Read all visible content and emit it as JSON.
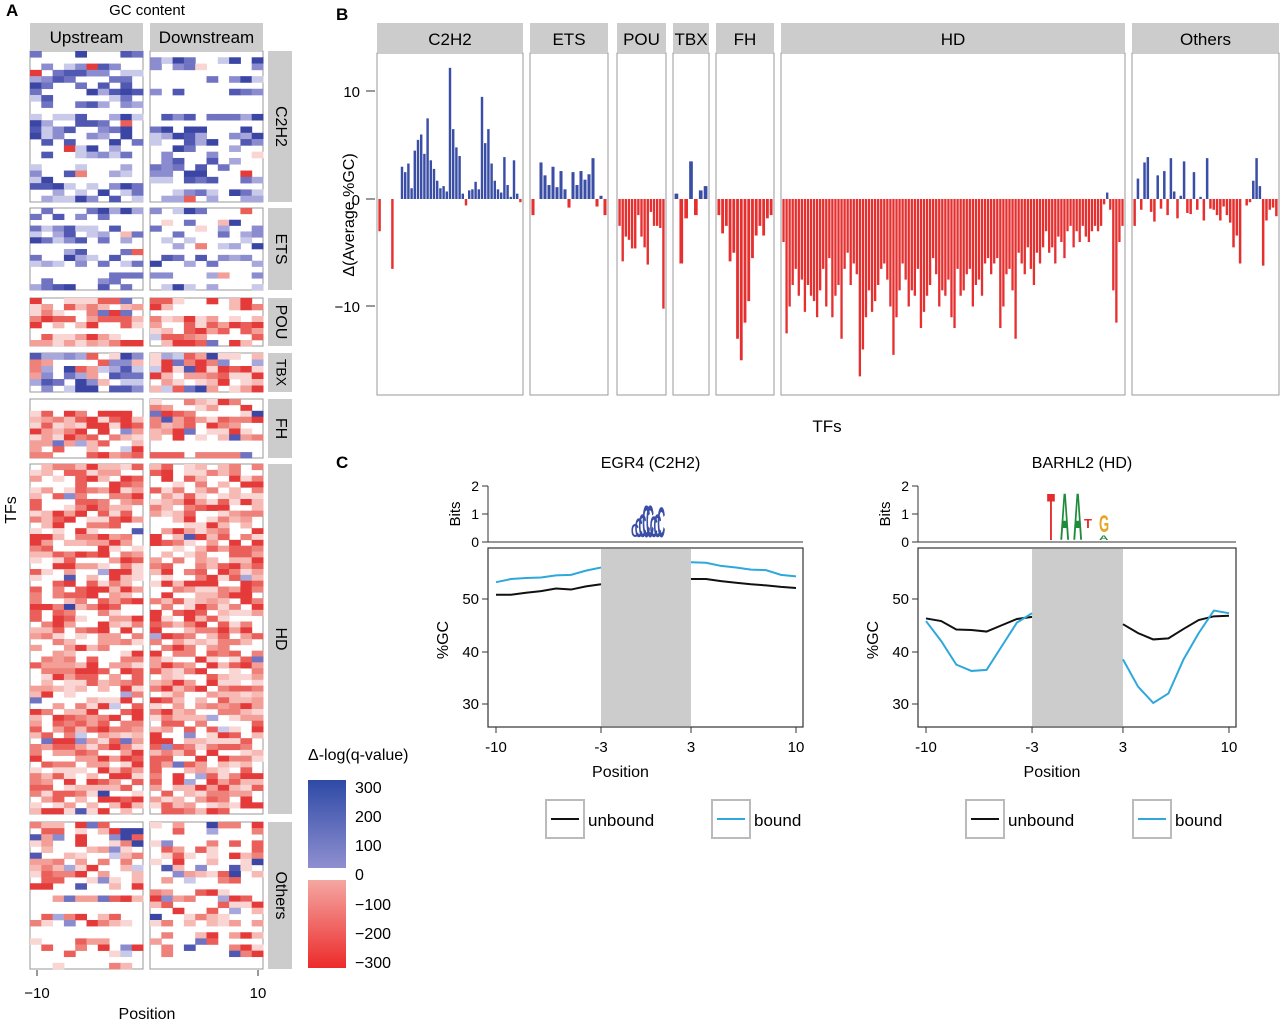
{
  "panel_a": {
    "letter": "A",
    "title": "GC content",
    "columns": [
      "Upstream",
      "Downstream"
    ],
    "families": [
      "C2H2",
      "ETS",
      "POU",
      "TBX",
      "FH",
      "HD",
      "Others"
    ],
    "family_rows": [
      24,
      14,
      8,
      6,
      10,
      60,
      24
    ],
    "xlabel": "Position",
    "ylabel": "TFs",
    "xticks": [
      "−10",
      "10"
    ],
    "legend_title": "Δ-log(q-value)",
    "legend_values": [
      "300",
      "200",
      "100",
      "0",
      "−100",
      "−200",
      "−300"
    ]
  },
  "panel_b": {
    "letter": "B",
    "ylabel": "Δ(Average %GC)",
    "xlabel": "TFs",
    "yticks": [
      "10",
      "0",
      "−10"
    ],
    "chart_data": {
      "type": "bar",
      "ylim": [
        -18,
        14
      ],
      "groups": [
        {
          "name": "C2H2",
          "values": [
            -3,
            0,
            0,
            0,
            -6.5,
            0,
            0,
            3,
            2.5,
            3.3,
            1,
            4.5,
            5.5,
            6,
            4.2,
            7.5,
            3.6,
            2.8,
            1.7,
            1,
            1.2,
            0.7,
            12.2,
            6.5,
            4.8,
            4,
            0.5,
            -0.6,
            0.8,
            0.9,
            1.6,
            0.9,
            9.5,
            5.2,
            6.5,
            3.3,
            1.7,
            0.9,
            0.6,
            3.9,
            1.3,
            0.2,
            3.6,
            0.5,
            -0.3
          ]
        },
        {
          "name": "ETS",
          "values": [
            -1.5,
            0,
            3.4,
            2.2,
            1.3,
            3,
            1.1,
            2.6,
            0.9,
            -0.8,
            2.5,
            1.3,
            2.6,
            1.8,
            2.3,
            3.8,
            -0.7,
            0.3,
            -1.5
          ]
        },
        {
          "name": "POU",
          "values": [
            -2.5,
            -5.8,
            -3.5,
            -3.8,
            -4.6,
            -4.6,
            -1.5,
            -3.5,
            -4.5,
            -6.1,
            -1.2,
            -2.5,
            -2.5,
            -2.7,
            -10.2
          ]
        },
        {
          "name": "TBX",
          "values": [
            0.5,
            -6,
            -1.8,
            3.5,
            -1.5,
            0.8,
            1.2
          ]
        },
        {
          "name": "FH",
          "values": [
            -1.5,
            -3.2,
            -2.5,
            -5.8,
            -5,
            -13,
            -15,
            -11.5,
            -9.5,
            -5.5,
            -3.4,
            -2.5,
            -3.4,
            -1.8,
            -1.5
          ]
        },
        {
          "name": "HD",
          "values": [
            -4,
            -12.5,
            -10,
            -8,
            -6.5,
            -9,
            -7.5,
            -10.5,
            -8,
            -9,
            -9.5,
            -11,
            -8.5,
            -6.5,
            -10,
            -5.5,
            -11,
            -9,
            -8,
            -13,
            -6.5,
            -5,
            -8,
            -6,
            -7,
            -16.5,
            -14,
            -11,
            -8.5,
            -10.5,
            -9.5,
            -8,
            -6.5,
            -6,
            -7.5,
            -10,
            -14.5,
            -11,
            -8.5,
            -6,
            -7.5,
            -10,
            -8.5,
            -9,
            -6.5,
            -12,
            -10.5,
            -9,
            -8,
            -5.5,
            -7,
            -10,
            -8.5,
            -9,
            -7.5,
            -11,
            -12,
            -6.5,
            -9,
            -8.5,
            -7,
            -6.5,
            -10,
            -8,
            -7.5,
            -9,
            -6,
            -5.5,
            -7,
            -6,
            -5.5,
            -12,
            -10,
            -7,
            -6.5,
            -8.5,
            -13,
            -5,
            -6,
            -7,
            -4.5,
            -6.5,
            -8,
            -5,
            -6,
            -4.5,
            -3,
            -5,
            -4.5,
            -6,
            -3.5,
            -4,
            -5.5,
            -3,
            -2.5,
            -4.5,
            -3,
            -4,
            -2.5,
            -3.5,
            -4,
            -3,
            -2.5,
            -3,
            -2.5,
            -0.5,
            0.6,
            -1,
            -8.5,
            -11.5,
            -4,
            -2.5
          ]
        },
        {
          "name": "Others",
          "values": [
            -2.5,
            1.9,
            -1,
            3.4,
            3.9,
            -1.2,
            -2.1,
            2.2,
            -0.9,
            2.6,
            -1.5,
            3.8,
            0.7,
            -1.8,
            0.3,
            3.5,
            -1.3,
            -1.4,
            2.5,
            -1,
            0.2,
            -2,
            3.8,
            -0.9,
            -1,
            -1.5,
            -2,
            -0.7,
            -1.5,
            -2.2,
            -4.5,
            -3.4,
            -6,
            0,
            -0.6,
            -0.3,
            1.7,
            3.8,
            1.2,
            -6.2,
            -2,
            -1,
            -0.8,
            -1.6
          ]
        }
      ]
    }
  },
  "panel_c": {
    "letter": "C",
    "bits_label": "Bits",
    "bits_ticks": [
      "2",
      "1",
      "0"
    ],
    "ylabel": "%GC",
    "xlabel": "Position",
    "xticks": [
      "-10",
      "-3",
      "3",
      "10"
    ],
    "legend": {
      "unbound": "unbound",
      "bound": "bound"
    },
    "colors": {
      "unbound": "#111111",
      "bound": "#2ea8dc",
      "shade": "#cccccc"
    },
    "plots": [
      {
        "title": "EGR4 (C2H2)",
        "logo_letters": [
          "C",
          "C",
          "C",
          "C",
          "C",
          "C",
          "C",
          "C"
        ],
        "yticks": [
          "50",
          "40",
          "30"
        ],
        "chart_data": {
          "type": "line",
          "ylim": [
            25,
            59
          ],
          "series": [
            {
              "name": "unbound",
              "left_x": [
                -10,
                -9,
                -8,
                -7,
                -6,
                -5,
                -4,
                -3
              ],
              "left_y": [
                50.8,
                50.8,
                51.2,
                51.5,
                52,
                51.8,
                52.4,
                52.8
              ],
              "right_x": [
                3,
                4,
                5,
                6,
                7,
                8,
                9,
                10
              ],
              "right_y": [
                53.8,
                53.8,
                53.4,
                53.1,
                52.8,
                52.6,
                52.3,
                52.1
              ]
            },
            {
              "name": "bound",
              "left_x": [
                -10,
                -9,
                -8,
                -7,
                -6,
                -5,
                -4,
                -3
              ],
              "left_y": [
                53.2,
                53.8,
                54,
                54.1,
                54.5,
                54.6,
                55.4,
                56
              ],
              "right_x": [
                3,
                4,
                5,
                6,
                7,
                8,
                9,
                10
              ],
              "right_y": [
                57,
                56.9,
                56.3,
                56,
                55.6,
                55.5,
                54.6,
                54.3
              ]
            }
          ]
        }
      },
      {
        "title": "BARHL2 (HD)",
        "logo_letters": [
          "T",
          "A",
          "A",
          "T",
          "G",
          "A"
        ],
        "yticks": [
          "50",
          "40",
          "30"
        ],
        "chart_data": {
          "type": "line",
          "ylim": [
            25,
            59
          ],
          "series": [
            {
              "name": "unbound",
              "left_x": [
                -10,
                -9,
                -8,
                -7,
                -6,
                -5,
                -4,
                -3
              ],
              "left_y": [
                46.3,
                45.8,
                44.2,
                44.1,
                43.8,
                45,
                46.2,
                46.6
              ],
              "right_x": [
                3,
                4,
                5,
                6,
                7,
                8,
                9,
                10
              ],
              "right_y": [
                45.2,
                43.5,
                42.3,
                42.5,
                44.3,
                46,
                46.7,
                46.8
              ]
            },
            {
              "name": "bound",
              "left_x": [
                -10,
                -9,
                -8,
                -7,
                -6,
                -5,
                -4,
                -3
              ],
              "left_y": [
                45.8,
                42,
                37.5,
                36.3,
                36.5,
                41,
                45.5,
                47.3
              ],
              "right_x": [
                3,
                4,
                5,
                6,
                7,
                8,
                9,
                10
              ],
              "right_y": [
                38.5,
                33.3,
                30.2,
                32,
                38.5,
                43.5,
                47.8,
                47.3
              ]
            }
          ]
        }
      }
    ]
  }
}
